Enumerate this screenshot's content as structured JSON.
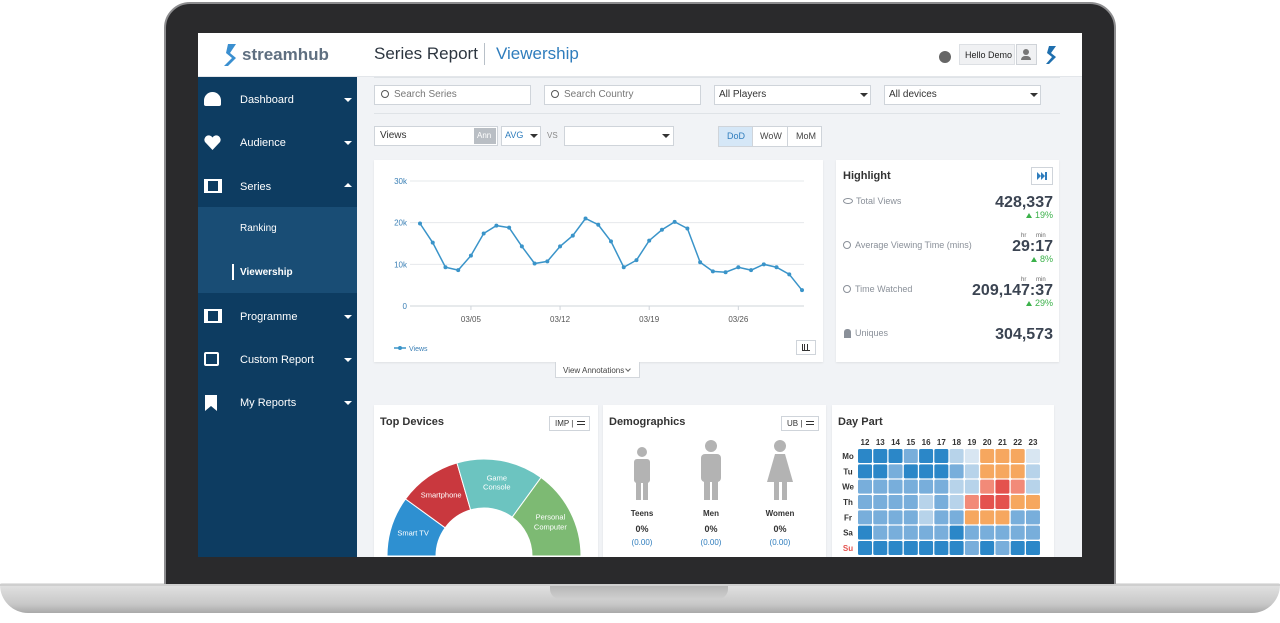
{
  "header": {
    "logo": "streamhub",
    "title": "Series Report",
    "subtitle": "Viewership",
    "user": "Hello Demo"
  },
  "sidebar": {
    "items": [
      "Dashboard",
      "Audience",
      "Series",
      "Programme",
      "Custom Report",
      "My Reports"
    ],
    "subitems": [
      "Ranking",
      "Viewership"
    ]
  },
  "filters": {
    "search_series": "Search Series",
    "search_country": "Search Country",
    "players": "All Players",
    "devices": "All devices"
  },
  "controls": {
    "metric": "Views",
    "ann": "Ann",
    "avg": "AVG",
    "vs": "VS",
    "periods": [
      "DoD",
      "WoW",
      "MoM"
    ]
  },
  "line_chart": {
    "type": "line",
    "categories": [
      null,
      null,
      null,
      null,
      "03/05",
      null,
      null,
      null,
      null,
      null,
      null,
      "03/12",
      null,
      null,
      null,
      null,
      null,
      null,
      "03/19",
      null,
      null,
      null,
      null,
      null,
      null,
      "03/26",
      null,
      null,
      null,
      null,
      null
    ],
    "series": [
      {
        "name": "Views",
        "color": "#3a94c9",
        "values": [
          19800,
          15200,
          9300,
          8600,
          12100,
          17400,
          19300,
          18800,
          14300,
          10200,
          10700,
          14300,
          16900,
          21000,
          19500,
          15500,
          9300,
          11000,
          15700,
          18300,
          20200,
          18600,
          10500,
          8300,
          8100,
          9300,
          8600,
          10000,
          9300,
          7600,
          3800
        ]
      }
    ],
    "ylim": [
      0,
      30000
    ],
    "yticks": [
      {
        "value": 0,
        "label": "0"
      },
      {
        "value": 10000,
        "label": "10k"
      },
      {
        "value": 20000,
        "label": "20k"
      },
      {
        "value": 30000,
        "label": "30k"
      }
    ],
    "grid": true
  },
  "annotations_button": "View Annotations",
  "highlight": {
    "title": "Highlight",
    "items": [
      {
        "label": "Total Views",
        "value": "428,337",
        "change": "19%"
      },
      {
        "label": "Average Viewing Time (mins)",
        "value": "29:17",
        "change": "8%",
        "units": [
          "hr",
          "min"
        ]
      },
      {
        "label": "Time Watched",
        "value": "209,147:37",
        "change": "29%",
        "units": [
          "hr",
          "min"
        ]
      },
      {
        "label": "Uniques",
        "value": "304,573"
      }
    ]
  },
  "top_devices": {
    "title": "Top Devices",
    "toggle": "IMP |",
    "chart_data": {
      "type": "pie",
      "categories": [
        "Smart TV",
        "Smartphone",
        "Game Console",
        "Personal Computer"
      ],
      "values": [
        20,
        21,
        29,
        30
      ],
      "colors": [
        "#2e90d1",
        "#c9383e",
        "#6cc4c0",
        "#7dba73"
      ]
    }
  },
  "demographics": {
    "title": "Demographics",
    "toggle": "UB |",
    "groups": [
      {
        "label": "Teens",
        "share": "0%",
        "index": "(0.00)"
      },
      {
        "label": "Men",
        "share": "0%",
        "index": "(0.00)"
      },
      {
        "label": "Women",
        "share": "0%",
        "index": "(0.00)"
      }
    ]
  },
  "day_part": {
    "title": "Day Part",
    "chart_data": {
      "type": "heatmap",
      "x": [
        12,
        13,
        14,
        15,
        16,
        17,
        18,
        19,
        20,
        21,
        22,
        23
      ],
      "y": [
        "Mo",
        "Tu",
        "We",
        "Th",
        "Fr",
        "Sa",
        "Su"
      ],
      "values": [
        [
          1,
          1,
          1,
          2,
          1,
          1,
          3,
          4,
          5,
          5,
          5,
          4
        ],
        [
          1,
          1,
          2,
          1,
          1,
          1,
          2,
          3,
          5,
          5,
          5,
          3
        ],
        [
          2,
          2,
          2,
          2,
          2,
          2,
          3,
          3,
          6,
          7,
          6,
          3
        ],
        [
          2,
          2,
          2,
          2,
          3,
          2,
          3,
          6,
          7,
          7,
          5,
          5
        ],
        [
          2,
          2,
          2,
          2,
          3,
          2,
          2,
          5,
          5,
          5,
          2,
          2
        ],
        [
          1,
          2,
          2,
          2,
          2,
          2,
          1,
          2,
          2,
          2,
          2,
          2
        ],
        [
          1,
          1,
          1,
          1,
          1,
          1,
          1,
          2,
          1,
          2,
          1,
          1
        ]
      ],
      "colorscale": [
        "#2b87c8",
        "#78aedb",
        "#b7d3ea",
        "#d8e6f2",
        "#f6a75f",
        "#f28a78",
        "#e4524e"
      ]
    }
  }
}
